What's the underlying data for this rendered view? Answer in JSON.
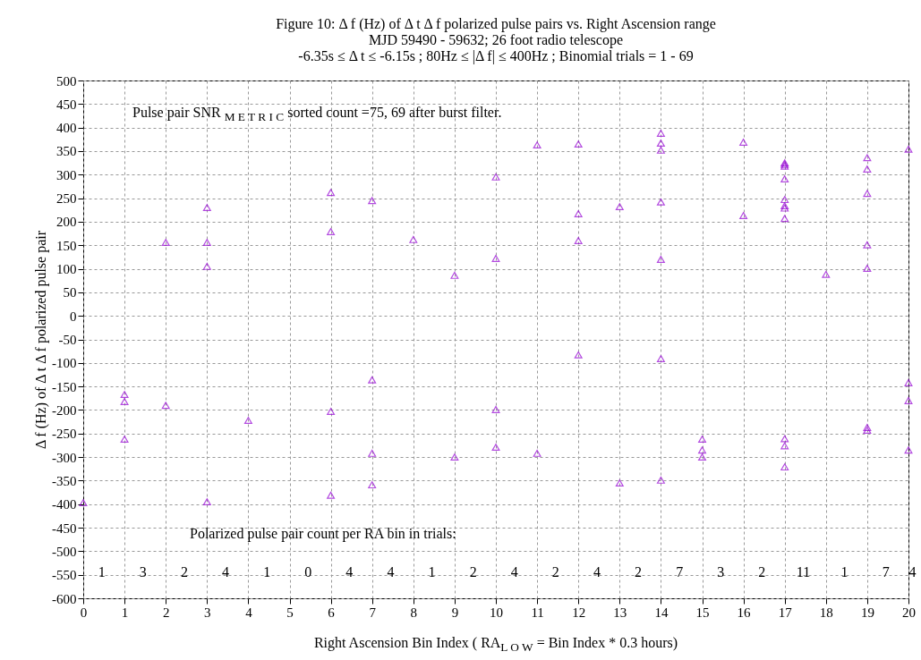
{
  "chart_data": {
    "type": "scatter",
    "title": "Figure 10: Δ f (Hz) of Δ t Δ f polarized pulse pairs vs. Right Ascension range",
    "subtitle": "MJD 59490 - 59632; 26 foot radio telescope\n-6.35s ≤ Δ t ≤ -6.15s ; 80Hz ≤ |Δ f| ≤ 400Hz  ; Binomial trials =   1 -  69",
    "xlabel": "Right Ascension Bin Index ( RA$_{L O W}$ = Bin Index * 0.3 hours)",
    "ylabel": "Δ f (Hz) of Δ t Δ f polarized pulse pair",
    "x": [
      0,
      1,
      1,
      1,
      2,
      2,
      3,
      3,
      3,
      3,
      4,
      6,
      6,
      6,
      6,
      7,
      7,
      7,
      7,
      8,
      9,
      9,
      10,
      10,
      10,
      10,
      11,
      11,
      12,
      12,
      12,
      12,
      13,
      13,
      14,
      14,
      14,
      14,
      14,
      14,
      14,
      15,
      15,
      15,
      16,
      16,
      17,
      17,
      17,
      17,
      17,
      17,
      17,
      17,
      17,
      17,
      17,
      18,
      19,
      19,
      19,
      19,
      19,
      19,
      19,
      20,
      20,
      20,
      20
    ],
    "series": [
      {
        "color": "#9400d3",
        "values": [
          -397,
          -167,
          -182,
          -262,
          156,
          -190,
          230,
          156,
          105,
          -395,
          -222,
          262,
          179,
          -203,
          -381,
          245,
          -136,
          -292,
          -359,
          162,
          86,
          -300,
          295,
          122,
          -199,
          -279,
          363,
          -292,
          365,
          217,
          160,
          -83,
          232,
          -355,
          388,
          367,
          352,
          242,
          120,
          -91,
          -349,
          -262,
          -285,
          -300,
          369,
          213,
          325,
          322,
          318,
          291,
          247,
          234,
          229,
          207,
          -261,
          -276,
          -321,
          88,
          336,
          312,
          260,
          151,
          101,
          -237,
          -243,
          354,
          -142,
          -180,
          -285
        ]
      }
    ],
    "xlim": [
      0,
      20
    ],
    "xticks": [
      0,
      1,
      2,
      3,
      4,
      5,
      6,
      7,
      8,
      9,
      10,
      11,
      12,
      13,
      14,
      15,
      16,
      17,
      18,
      19,
      20
    ],
    "ylim": [
      -600,
      500
    ],
    "yticks": [
      -600,
      -550,
      -500,
      -450,
      -400,
      -350,
      -300,
      -250,
      -200,
      -150,
      -100,
      -50,
      0,
      50,
      100,
      150,
      200,
      250,
      300,
      350,
      400,
      450,
      500
    ],
    "grid": true,
    "legend": false,
    "marker": "triangle",
    "annotations": [
      "Pulse pair SNR $_{M E T R I C}$ sorted count =75, 69 after burst filter.",
      "Polarized pulse pair count per RA bin in trials:",
      "1",
      "3",
      "2",
      "4",
      "1",
      "0",
      "4",
      "4",
      "1",
      "2",
      "4",
      "2",
      "4",
      "2",
      "7",
      "3",
      "2",
      "11",
      "1",
      "7",
      "4"
    ]
  }
}
